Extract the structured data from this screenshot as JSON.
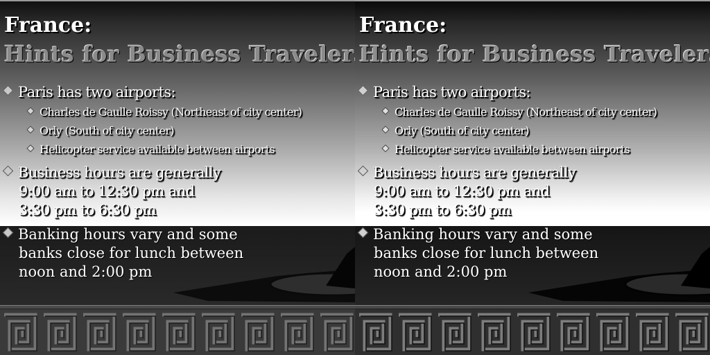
{
  "slide": {
    "title_line1": "France:",
    "title_line2": "Hints for Business Travelers",
    "bullets": [
      {
        "text": "Paris has two airports:",
        "subitems": [
          "Charles de Gaulle Roissy (Northeast of city center)",
          "Orly (South of city center)",
          "Helicopter service available between airports"
        ]
      },
      {
        "lines": [
          "Business hours are generally",
          "9:00 am to 12:30 pm and",
          "3:30 pm to 6:30 pm"
        ]
      },
      {
        "lines": [
          "Banking hours vary and some",
          "banks close for lunch between",
          "noon and 2:00 pm"
        ]
      }
    ]
  },
  "colors": {
    "title": "#ffffff",
    "subtitle": "#8a8a8a",
    "dark_band": "#1b1b1b",
    "border_pattern": "#3a3a3a"
  },
  "decorations": [
    "louvre-pyramid-silhouette",
    "greek-key-border"
  ]
}
